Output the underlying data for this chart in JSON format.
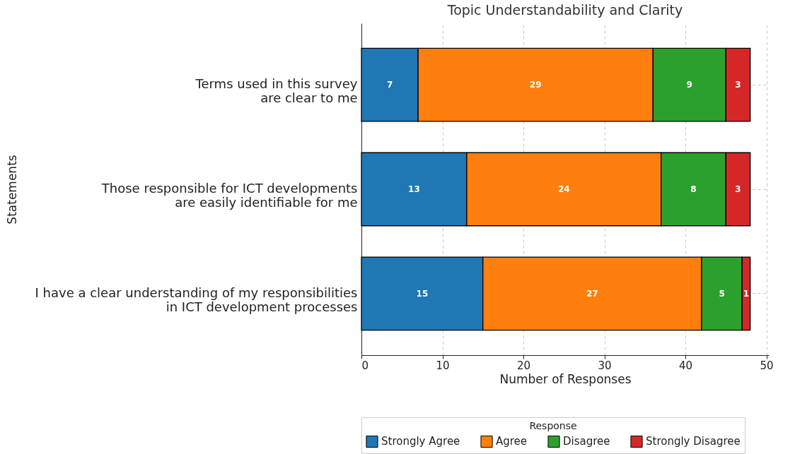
{
  "chart_data": {
    "type": "bar",
    "orientation": "horizontal",
    "stacked": true,
    "title": "Topic Understandability and Clarity",
    "xlabel": "Number of Responses",
    "ylabel": "Statements",
    "legend_title": "Response",
    "categories": [
      "Terms used in this survey\nare clear to me",
      "Those responsible for ICT developments\nare easily identifiable for me",
      "I have a clear understanding of my responsibilities\nin ICT development processes"
    ],
    "series": [
      {
        "name": "Strongly Agree",
        "color": "#1f77b4",
        "values": [
          7,
          13,
          15
        ]
      },
      {
        "name": "Agree",
        "color": "#ff7f0e",
        "values": [
          29,
          24,
          27
        ]
      },
      {
        "name": "Disagree",
        "color": "#2ca02c",
        "values": [
          9,
          8,
          5
        ]
      },
      {
        "name": "Strongly Disagree",
        "color": "#d62728",
        "values": [
          3,
          3,
          1
        ]
      }
    ],
    "xlim": [
      0,
      50.3
    ],
    "xticks": [
      0,
      10,
      20,
      30,
      40,
      50
    ],
    "grid": true,
    "legend": "bottom",
    "data_labels": true
  }
}
